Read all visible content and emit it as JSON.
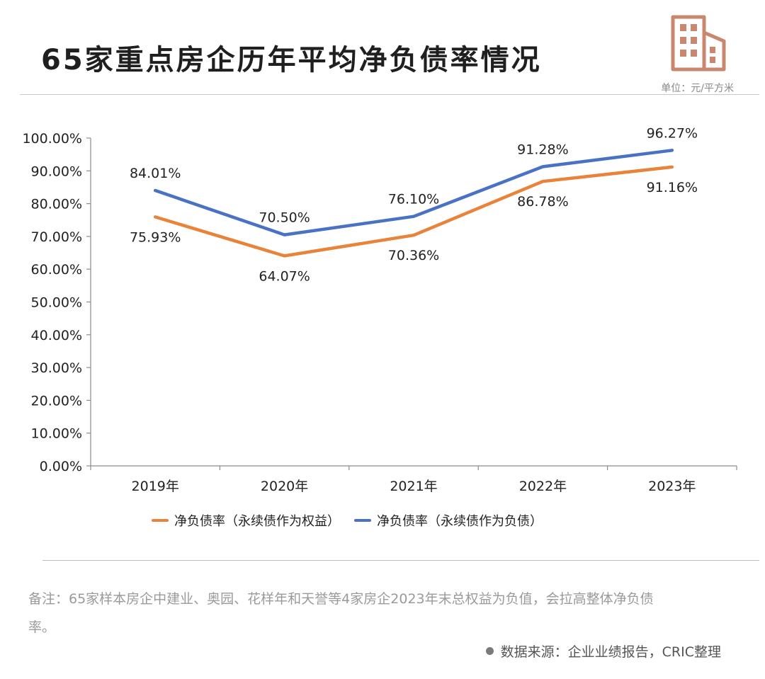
{
  "header": {
    "title": "65家重点房企历年平均净负债率情况",
    "unit": "单位：元/平方米",
    "icon": "building-icon",
    "icon_color": "#c9876d"
  },
  "colors": {
    "series_orange": "#e9833a",
    "series_blue": "#4a72c4",
    "axis": "#8c8c8c"
  },
  "chart_data": {
    "type": "line",
    "title": "65家重点房企历年平均净负债率情况",
    "xlabel": "",
    "ylabel": "",
    "categories": [
      "2019年",
      "2020年",
      "2021年",
      "2022年",
      "2023年"
    ],
    "ylim": [
      0,
      100
    ],
    "yticks": [
      "0.00%",
      "10.00%",
      "20.00%",
      "30.00%",
      "40.00%",
      "50.00%",
      "60.00%",
      "70.00%",
      "80.00%",
      "90.00%",
      "100.00%"
    ],
    "grid": false,
    "legend": "bottom",
    "series": [
      {
        "name": "净负债率（永续债作为权益）",
        "values": [
          75.93,
          64.07,
          70.36,
          86.78,
          91.16
        ],
        "labels": [
          "75.93%",
          "64.07%",
          "70.36%",
          "86.78%",
          "91.16%"
        ]
      },
      {
        "name": "净负债率（永续债作为负债）",
        "values": [
          84.01,
          70.5,
          76.1,
          91.28,
          96.27
        ],
        "labels": [
          "84.01%",
          "70.50%",
          "76.10%",
          "91.28%",
          "96.27%"
        ]
      }
    ]
  },
  "footer": {
    "note": "备注：65家样本房企中建业、奥园、花样年和天誉等4家房企2023年末总权益为负值，会拉高整体净负债率。",
    "source": "数据来源：企业业绩报告，CRIC整理"
  }
}
